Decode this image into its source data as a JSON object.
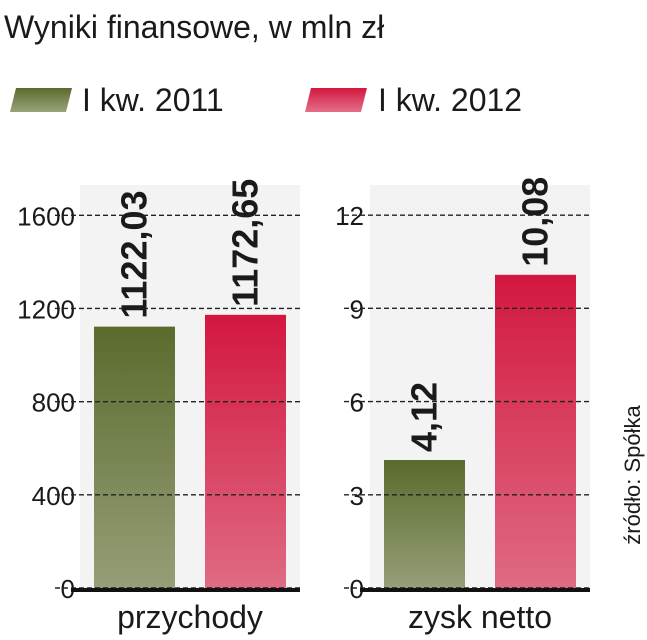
{
  "title": "Wyniki finansowe, w mln zł",
  "source": "źródło: Spółka",
  "chart_data": [
    {
      "type": "bar",
      "xlabel": "przychody",
      "series": [
        {
          "name": "I kw. 2011",
          "color": "#5b6b2c",
          "values": [
            1122.03
          ],
          "value_labels": [
            "1122,03"
          ]
        },
        {
          "name": "I kw. 2012",
          "color": "#d3173f",
          "values": [
            1172.65
          ],
          "value_labels": [
            "1172,65"
          ]
        }
      ],
      "ylim": [
        0,
        1730
      ],
      "yticks": [
        0,
        400,
        800,
        1200,
        1600
      ],
      "grid": true
    },
    {
      "type": "bar",
      "xlabel": "zysk netto",
      "series": [
        {
          "color": "#5b6b2c",
          "values": [
            4.12
          ],
          "value_labels": [
            "4,12"
          ]
        },
        {
          "color": "#d3173f",
          "values": [
            10.08
          ],
          "value_labels": [
            "10,08"
          ]
        }
      ],
      "ylim": [
        0,
        12.97
      ],
      "yticks": [
        0,
        3,
        6,
        9,
        12
      ],
      "grid": true
    }
  ]
}
